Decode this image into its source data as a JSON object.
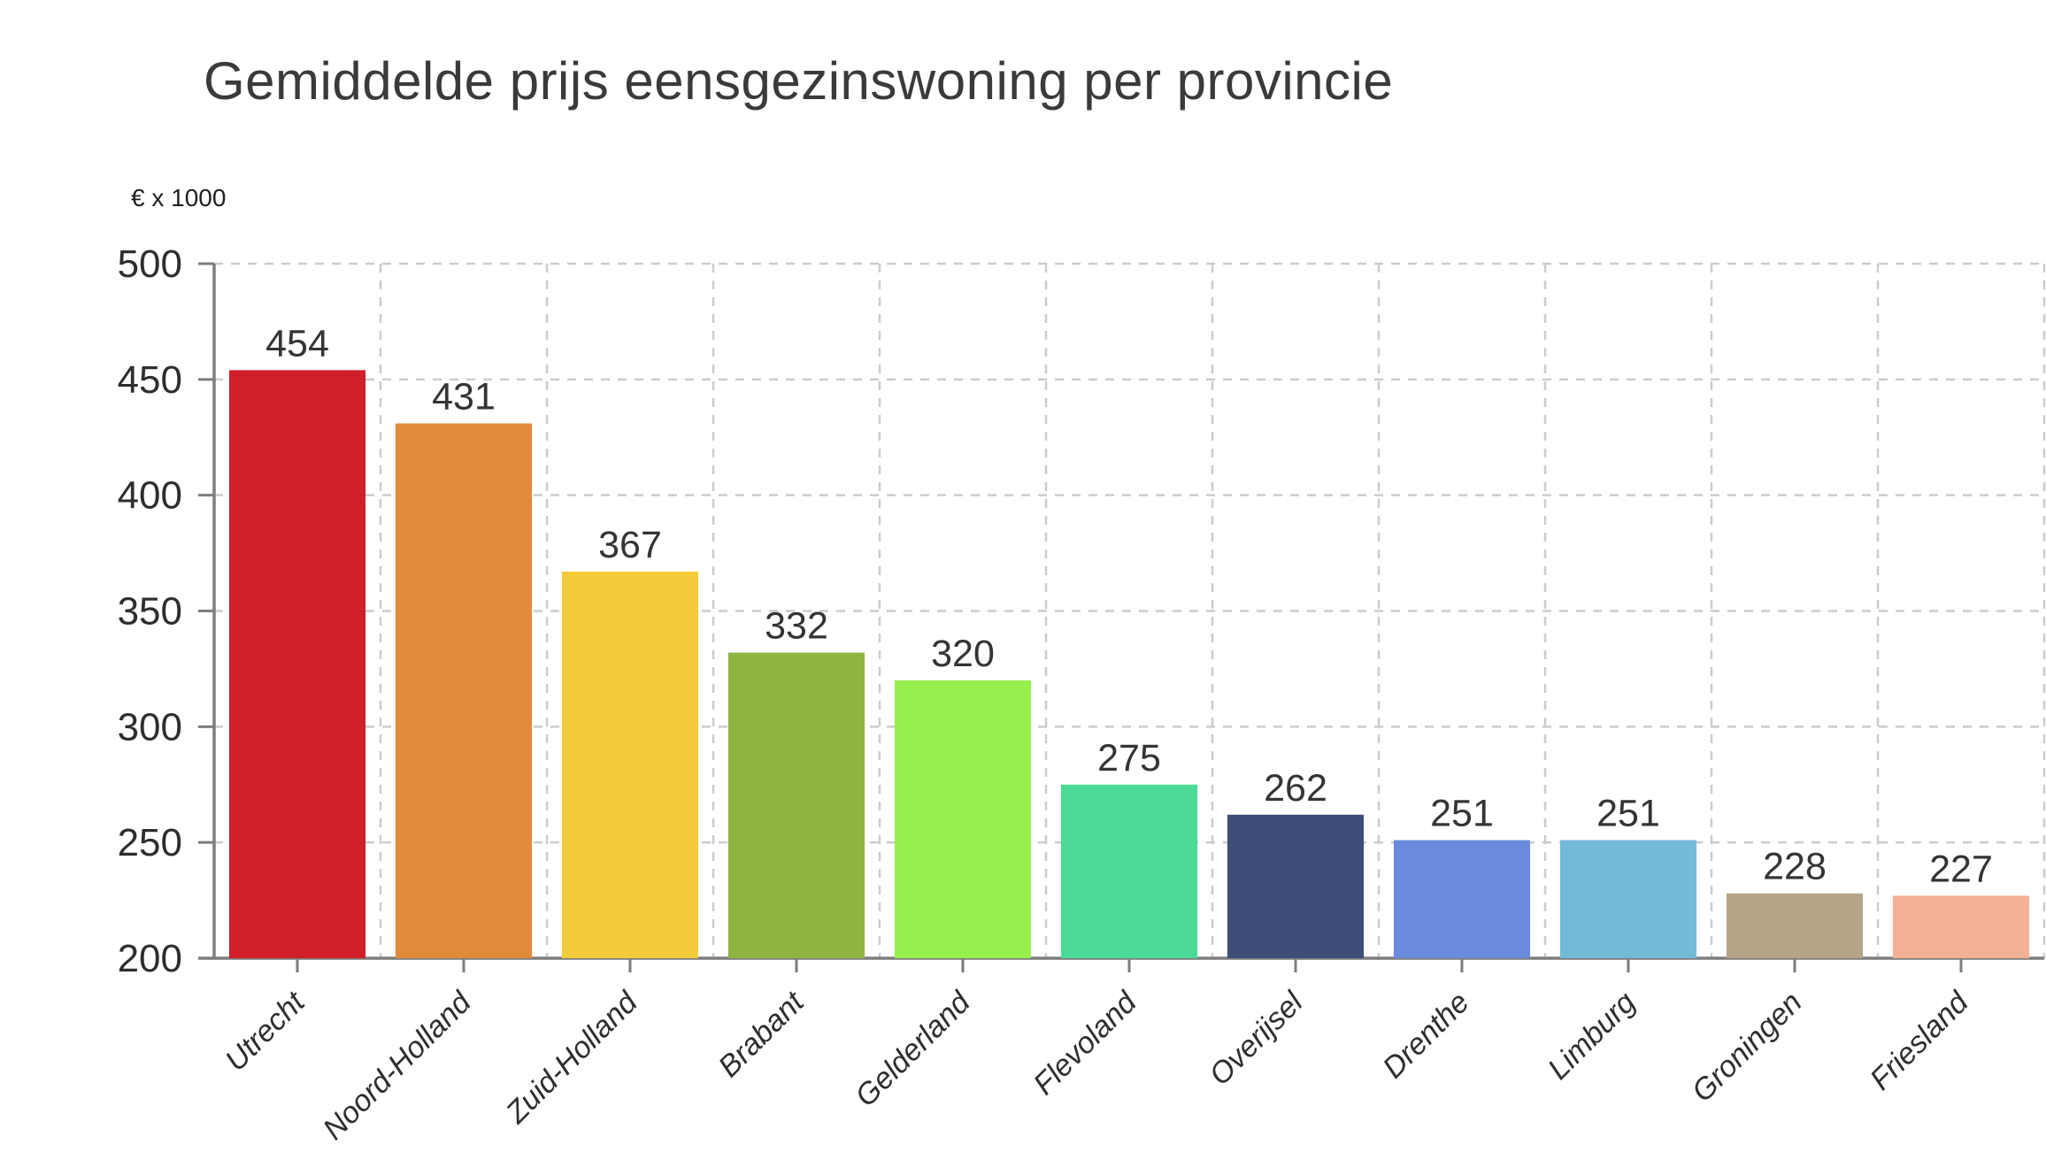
{
  "chart_data": {
    "type": "bar",
    "title": "Gemiddelde prijs eensgezinswoning per provincie",
    "unit_label": "€ x 1000",
    "categories": [
      "Utrecht",
      "Noord-Holland",
      "Zuid-Holland",
      "Brabant",
      "Gelderland",
      "Flevoland",
      "Overijsel",
      "Drenthe",
      "Limburg",
      "Groningen",
      "Friesland"
    ],
    "values": [
      454,
      431,
      367,
      332,
      320,
      275,
      262,
      251,
      251,
      228,
      227
    ],
    "bar_colors": [
      "#d01f28",
      "#e28a3c",
      "#f3cb3a",
      "#8fb442",
      "#97ef4e",
      "#4bdb97",
      "#3f4e78",
      "#6a8ade",
      "#73b9d8",
      "#b5a488",
      "#f2b095"
    ],
    "ylim": [
      200,
      500
    ],
    "yticks": [
      200,
      250,
      300,
      350,
      400,
      450,
      500
    ],
    "grid": true,
    "legend": false,
    "value_labels_shown": true,
    "xlabel": "",
    "ylabel": "€ x 1000"
  },
  "style": {
    "grid_color": "#cccccc",
    "axis_color": "#7d7d7d",
    "text_color": "#2e2e2e",
    "background": "#ffffff"
  }
}
